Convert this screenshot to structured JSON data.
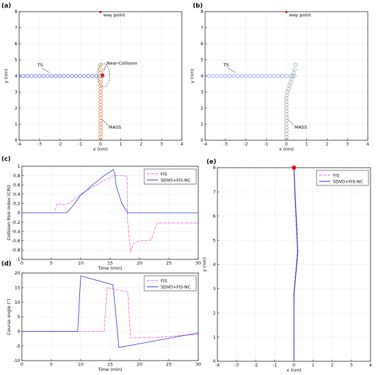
{
  "chart_data": [
    {
      "id": "a",
      "panel_label": "(a)",
      "type": "scatter",
      "xlabel": "x (nm)",
      "ylabel": "y (nm)",
      "xlim": [
        -4,
        4
      ],
      "ylim": [
        0,
        8
      ],
      "xticks": [
        -4,
        -3,
        -2,
        -1,
        0,
        1,
        2,
        3,
        4
      ],
      "yticks": [
        0,
        1,
        2,
        3,
        4,
        5,
        6,
        7,
        8
      ],
      "grid": true,
      "series": [
        {
          "name": "TS",
          "color": "#4a5bd6",
          "x": [
            -4.0,
            -3.8,
            -3.6,
            -3.4,
            -3.2,
            -3.0,
            -2.8,
            -2.6,
            -2.4,
            -2.2,
            -2.0,
            -1.8,
            -1.6,
            -1.4,
            -1.2,
            -1.0,
            -0.8,
            -0.6,
            -0.4,
            -0.2,
            0.0,
            0.1
          ],
          "y": [
            4.0,
            4.0,
            4.0,
            4.0,
            4.0,
            4.0,
            4.0,
            4.0,
            4.0,
            4.0,
            4.0,
            4.0,
            4.0,
            4.0,
            4.0,
            4.0,
            4.0,
            4.0,
            4.0,
            4.0,
            4.0,
            4.0
          ]
        },
        {
          "name": "MASS",
          "color": "#d2691e",
          "x": [
            0,
            0,
            0,
            0,
            0,
            0,
            0,
            0,
            0,
            0,
            0,
            0,
            0,
            0,
            0,
            0,
            0,
            0,
            0,
            0,
            0,
            0,
            0,
            0
          ],
          "y": [
            0.0,
            0.2,
            0.4,
            0.6,
            0.8,
            1.0,
            1.2,
            1.4,
            1.6,
            1.8,
            2.0,
            2.2,
            2.4,
            2.6,
            2.8,
            3.0,
            3.2,
            3.4,
            3.6,
            3.8,
            4.0,
            4.2,
            4.4,
            4.7
          ]
        }
      ],
      "annotations": [
        {
          "text": "way point",
          "x": 0,
          "y": 8
        },
        {
          "text": "TS",
          "x": -3.1,
          "y": 4.6
        },
        {
          "text": "Near-Collision",
          "x": 0.3,
          "y": 4.7
        },
        {
          "text": "MASS",
          "x": 0.4,
          "y": 0.9
        }
      ]
    },
    {
      "id": "b",
      "panel_label": "(b)",
      "type": "scatter",
      "xlabel": "x (nm)",
      "ylabel": "y (nm)",
      "xlim": [
        -4,
        4
      ],
      "ylim": [
        0,
        8
      ],
      "xticks": [
        -4,
        -3,
        -2,
        -1,
        0,
        1,
        2,
        3,
        4
      ],
      "yticks": [
        0,
        1,
        2,
        3,
        4,
        5,
        6,
        7,
        8
      ],
      "grid": true,
      "series": [
        {
          "name": "TS",
          "color": "#8a94e6",
          "x": [
            -4.0,
            -3.8,
            -3.6,
            -3.4,
            -3.2,
            -3.0,
            -2.8,
            -2.6,
            -2.4,
            -2.2,
            -2.0,
            -1.8,
            -1.6,
            -1.4,
            -1.2,
            -1.0,
            -0.8,
            -0.6,
            -0.4,
            -0.2,
            0.0,
            0.2,
            0.4
          ],
          "y": [
            4.0,
            4.0,
            4.0,
            4.0,
            4.0,
            4.0,
            4.0,
            4.0,
            4.0,
            4.0,
            4.0,
            4.0,
            4.0,
            4.0,
            4.0,
            4.0,
            4.0,
            4.0,
            4.0,
            4.0,
            4.0,
            4.0,
            4.0
          ]
        },
        {
          "name": "MASS",
          "color": "#7fa07f",
          "x": [
            0,
            0,
            0,
            0,
            0,
            0,
            0,
            0,
            0,
            0,
            0,
            0,
            0,
            0,
            0.02,
            0.05,
            0.1,
            0.15,
            0.2,
            0.25,
            0.3,
            0.35,
            0.4,
            0.45
          ],
          "y": [
            0.0,
            0.2,
            0.4,
            0.6,
            0.8,
            1.0,
            1.2,
            1.4,
            1.6,
            1.8,
            2.0,
            2.2,
            2.4,
            2.6,
            2.8,
            3.0,
            3.2,
            3.4,
            3.6,
            3.8,
            4.0,
            4.2,
            4.4,
            4.7
          ]
        }
      ],
      "annotations": [
        {
          "text": "way point",
          "x": 0,
          "y": 8
        },
        {
          "text": "TS",
          "x": -3.1,
          "y": 4.6
        },
        {
          "text": "MASS",
          "x": 0.4,
          "y": 0.9
        }
      ]
    },
    {
      "id": "c",
      "panel_label": "(c)",
      "type": "line",
      "xlabel": "Time (min)",
      "ylabel": "Collision Risk Index (CRI)",
      "xlim": [
        0,
        30
      ],
      "ylim": [
        -1,
        1
      ],
      "xticks": [
        0,
        5,
        10,
        15,
        20,
        25,
        30
      ],
      "yticks": [
        -1,
        -0.8,
        -0.6,
        -0.4,
        -0.2,
        0,
        0.2,
        0.4,
        0.6,
        0.8,
        1
      ],
      "grid": true,
      "legend": "top-right",
      "series": [
        {
          "name": "FIS",
          "color": "#e83ad0",
          "dash": true,
          "x": [
            0,
            5.5,
            6,
            7,
            7.5,
            8,
            9,
            10,
            11,
            12,
            13,
            14,
            15,
            15.5,
            16,
            17,
            17.9,
            18,
            18.5,
            19,
            20,
            21,
            21.5,
            22,
            22.5,
            23,
            25,
            30
          ],
          "y": [
            0,
            0,
            0.2,
            0.17,
            0.18,
            0.2,
            0.3,
            0.4,
            0.48,
            0.55,
            0.62,
            0.7,
            0.75,
            0.8,
            0.8,
            0.8,
            0.79,
            -0.2,
            -0.85,
            -0.65,
            -0.6,
            -0.6,
            -0.6,
            -0.58,
            -0.4,
            -0.22,
            -0.22,
            -0.22
          ]
        },
        {
          "name": "SDVO+FIS-NC",
          "color": "#2233cc",
          "x": [
            0,
            7.5,
            8,
            9,
            10,
            11,
            12,
            13,
            14,
            15,
            15.5,
            15.8,
            16,
            17,
            18,
            30
          ],
          "y": [
            0,
            0,
            0.05,
            0.2,
            0.38,
            0.48,
            0.6,
            0.7,
            0.8,
            0.88,
            0.93,
            0.85,
            0.6,
            0.2,
            0,
            0
          ]
        }
      ]
    },
    {
      "id": "d",
      "panel_label": "(d)",
      "type": "line",
      "xlabel": "Time (min)",
      "ylabel": "Course angle (°)",
      "xlim": [
        0,
        30
      ],
      "ylim": [
        -10,
        20
      ],
      "xticks": [
        0,
        5,
        10,
        15,
        20,
        25,
        30
      ],
      "yticks": [
        -10,
        -5,
        0,
        5,
        10,
        15,
        20
      ],
      "grid": true,
      "legend": "top-right",
      "series": [
        {
          "name": "FIS",
          "color": "#e83ad0",
          "dash": true,
          "x": [
            0,
            14,
            14.5,
            18,
            18.5,
            23,
            30
          ],
          "y": [
            0,
            0,
            15,
            13.5,
            -2.2,
            -2,
            -1
          ]
        },
        {
          "name": "SDVO+FIS-NC",
          "color": "#2233cc",
          "x": [
            0,
            9.5,
            10,
            15.5,
            16.5,
            30
          ],
          "y": [
            0,
            0,
            19,
            16,
            -5.5,
            -0.5
          ]
        }
      ]
    },
    {
      "id": "e",
      "panel_label": "(e)",
      "type": "line",
      "xlabel": "x (nm)",
      "ylabel": "y (nm)",
      "xlim": [
        -4,
        4
      ],
      "ylim": [
        0,
        8
      ],
      "xticks": [
        -4,
        -3,
        -2,
        -1,
        0,
        1,
        2,
        3,
        4
      ],
      "yticks": [
        0,
        1,
        2,
        3,
        4,
        5,
        6,
        7,
        8
      ],
      "grid": true,
      "legend": "top-right",
      "waypoint": {
        "x": 0,
        "y": 8,
        "color": "#e01010"
      },
      "series": [
        {
          "name": "FIS",
          "color": "#e83ad0",
          "dash": true,
          "x": [
            0,
            0,
            0.04,
            0.12,
            0.18,
            0.12,
            0.04,
            0
          ],
          "y": [
            0,
            2.5,
            3.2,
            4.0,
            4.6,
            5.5,
            7.0,
            8
          ]
        },
        {
          "name": "SDVO+FIS-NC",
          "color": "#2233cc",
          "x": [
            0,
            0,
            0.05,
            0.15,
            0.2,
            0.15,
            0.05,
            0
          ],
          "y": [
            0,
            2.8,
            3.2,
            4.0,
            4.5,
            5.5,
            7.0,
            8
          ]
        }
      ]
    }
  ]
}
